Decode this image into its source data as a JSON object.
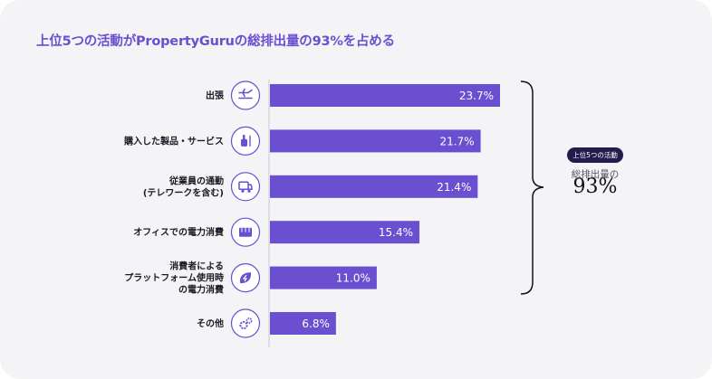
{
  "title": "上位5つの活動がPropertyGuruの総排出量の93%を占める",
  "chart_data": {
    "type": "bar",
    "orientation": "horizontal",
    "categories": [
      [
        "出張"
      ],
      [
        "購入した製品・サービス"
      ],
      [
        "従業員の通勤",
        "(テレワークを含む)"
      ],
      [
        "オフィスでの電力消費"
      ],
      [
        "消費者による",
        "プラットフォーム使用時",
        "の電力消費"
      ],
      [
        "その他"
      ]
    ],
    "values": [
      23.7,
      21.7,
      21.4,
      15.4,
      11.0,
      6.8
    ],
    "value_labels": [
      "23.7%",
      "21.7%",
      "21.4%",
      "15.4%",
      "11.0%",
      "6.8%"
    ],
    "icons": [
      "airplane-icon",
      "hand-icon",
      "delivery-truck-icon",
      "store-icon",
      "leaf-bolt-icon",
      "gears-icon"
    ],
    "xlim": [
      0,
      23.7
    ],
    "bar_color": "#6a4fd0"
  },
  "annotation": {
    "badge": "上位5つの活動",
    "subtitle": "総排出量の",
    "value": "93%"
  },
  "colors": {
    "accent": "#6a4fd0",
    "background": "#f4f3f6",
    "badge_bg": "#231c4c"
  }
}
